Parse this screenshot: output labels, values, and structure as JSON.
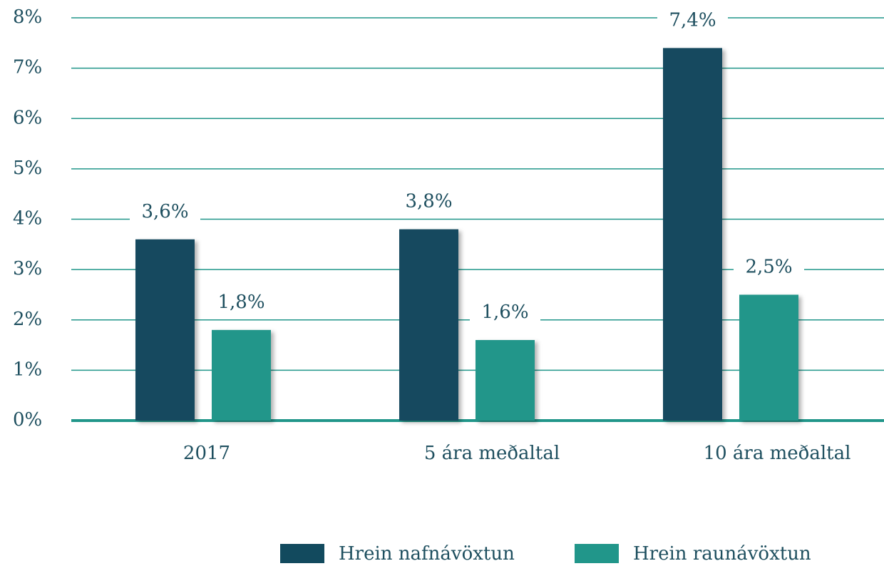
{
  "chart_data": {
    "type": "bar",
    "categories": [
      "2017",
      "5 ára meðaltal",
      "10 ára meðaltal"
    ],
    "series": [
      {
        "name": "Hrein nafnávöxtun",
        "color": "#124a5e",
        "values": [
          3.6,
          3.8,
          7.4
        ],
        "value_labels": [
          "3,6%",
          "3,8%",
          "7,4%"
        ]
      },
      {
        "name": "Hrein raunávöxtun",
        "color": "#21968a",
        "values": [
          1.8,
          1.6,
          2.5
        ],
        "value_labels": [
          "1,8%",
          "1,6%",
          "2,5%"
        ]
      }
    ],
    "ylim": [
      0,
      8
    ],
    "yticks": [
      {
        "value": 0,
        "label": "0%"
      },
      {
        "value": 1,
        "label": "1%"
      },
      {
        "value": 2,
        "label": "2%"
      },
      {
        "value": 3,
        "label": "3%"
      },
      {
        "value": 4,
        "label": "4%"
      },
      {
        "value": 5,
        "label": "5%"
      },
      {
        "value": 6,
        "label": "6%"
      },
      {
        "value": 7,
        "label": "7%"
      },
      {
        "value": 8,
        "label": "8%"
      }
    ],
    "grid": true,
    "grid_color": "#21968a",
    "legend": "bottom"
  }
}
